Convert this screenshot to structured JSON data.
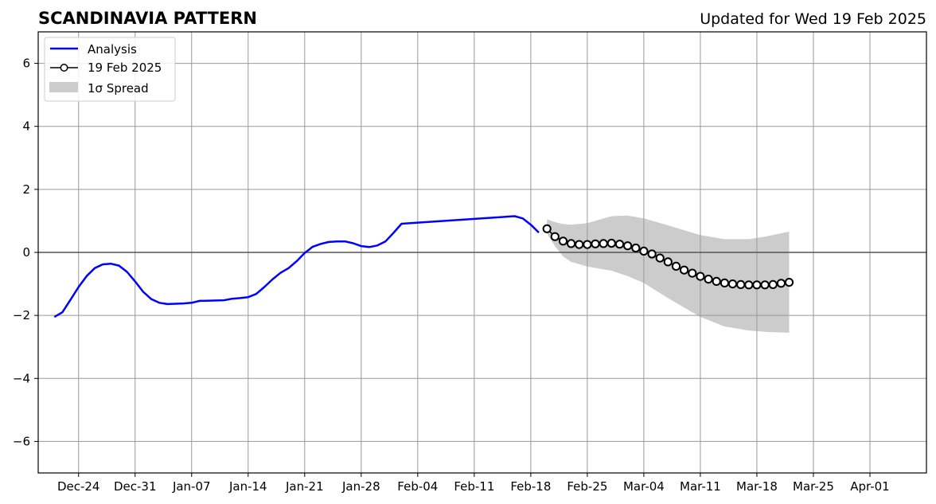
{
  "chart_data": {
    "type": "line",
    "title": "SCANDINAVIA PATTERN",
    "subtitle": "Updated for Wed 19 Feb 2025",
    "xlabel": "",
    "ylabel": "",
    "xlim": [
      "2024-12-19",
      "2025-04-08"
    ],
    "ylim": [
      -7,
      7
    ],
    "grid": true,
    "legend_position": "top-left",
    "x_ticks": [
      "2024-12-24",
      "2024-12-31",
      "2025-01-07",
      "2025-01-14",
      "2025-01-21",
      "2025-01-28",
      "2025-02-04",
      "2025-02-11",
      "2025-02-18",
      "2025-02-25",
      "2025-03-04",
      "2025-03-11",
      "2025-03-18",
      "2025-03-25",
      "2025-04-01"
    ],
    "x_tick_labels": [
      "Dec-24",
      "Dec-31",
      "Jan-07",
      "Jan-14",
      "Jan-21",
      "Jan-28",
      "Feb-04",
      "Feb-11",
      "Feb-18",
      "Feb-25",
      "Mar-04",
      "Mar-11",
      "Mar-18",
      "Mar-25",
      "Apr-01"
    ],
    "y_ticks": [
      -6,
      -4,
      -2,
      0,
      2,
      4,
      6
    ],
    "y_tick_labels": [
      "−6",
      "−4",
      "−2",
      "0",
      "2",
      "4",
      "6"
    ],
    "zero_line": 0,
    "series": [
      {
        "name": "Analysis",
        "style": "line",
        "color": "#0000ff",
        "x": [
          "2024-12-21",
          "2024-12-22",
          "2024-12-23",
          "2024-12-24",
          "2024-12-25",
          "2024-12-26",
          "2024-12-27",
          "2024-12-28",
          "2024-12-29",
          "2024-12-30",
          "2024-12-31",
          "2025-01-01",
          "2025-01-02",
          "2025-01-03",
          "2025-01-04",
          "2025-01-05",
          "2025-01-06",
          "2025-01-07",
          "2025-01-08",
          "2025-01-11",
          "2025-01-12",
          "2025-01-13",
          "2025-01-14",
          "2025-01-15",
          "2025-01-16",
          "2025-01-17",
          "2025-01-18",
          "2025-01-19",
          "2025-01-20",
          "2025-01-21",
          "2025-01-22",
          "2025-01-23",
          "2025-01-24",
          "2025-01-25",
          "2025-01-26",
          "2025-01-27",
          "2025-01-28",
          "2025-01-29",
          "2025-01-30",
          "2025-01-31",
          "2025-02-01",
          "2025-02-02",
          "2025-02-16",
          "2025-02-17",
          "2025-02-18",
          "2025-02-19"
        ],
        "values": [
          -2.05,
          -1.9,
          -1.5,
          -1.1,
          -0.75,
          -0.5,
          -0.38,
          -0.36,
          -0.42,
          -0.62,
          -0.92,
          -1.25,
          -1.48,
          -1.6,
          -1.64,
          -1.63,
          -1.62,
          -1.6,
          -1.54,
          -1.52,
          -1.47,
          -1.45,
          -1.42,
          -1.32,
          -1.1,
          -0.86,
          -0.65,
          -0.5,
          -0.28,
          -0.02,
          0.18,
          0.27,
          0.33,
          0.35,
          0.35,
          0.29,
          0.2,
          0.17,
          0.22,
          0.35,
          0.62,
          0.91,
          1.15,
          1.08,
          0.88,
          0.63
        ]
      },
      {
        "name": "19 Feb 2025",
        "style": "line-markers",
        "color": "#000000",
        "marker_fill": "#ffffff",
        "x": [
          "2025-02-20",
          "2025-02-21",
          "2025-02-22",
          "2025-02-23",
          "2025-02-24",
          "2025-02-25",
          "2025-02-26",
          "2025-02-27",
          "2025-02-28",
          "2025-03-01",
          "2025-03-02",
          "2025-03-03",
          "2025-03-04",
          "2025-03-05",
          "2025-03-06",
          "2025-03-07",
          "2025-03-08",
          "2025-03-09",
          "2025-03-10",
          "2025-03-11",
          "2025-03-12",
          "2025-03-13",
          "2025-03-14",
          "2025-03-15",
          "2025-03-16",
          "2025-03-17",
          "2025-03-18",
          "2025-03-19",
          "2025-03-20",
          "2025-03-21",
          "2025-03-22"
        ],
        "values": [
          0.75,
          0.5,
          0.36,
          0.28,
          0.25,
          0.25,
          0.27,
          0.28,
          0.29,
          0.26,
          0.21,
          0.14,
          0.04,
          -0.05,
          -0.18,
          -0.3,
          -0.44,
          -0.56,
          -0.66,
          -0.76,
          -0.85,
          -0.92,
          -0.97,
          -1.0,
          -1.02,
          -1.03,
          -1.03,
          -1.03,
          -1.02,
          -0.98,
          -0.95
        ]
      }
    ],
    "band": {
      "name": "1σ Spread",
      "color": "#cccccc",
      "x": [
        "2025-02-20",
        "2025-02-21",
        "2025-02-22",
        "2025-02-23",
        "2025-02-25",
        "2025-02-28",
        "2025-03-02",
        "2025-03-04",
        "2025-03-07",
        "2025-03-11",
        "2025-03-14",
        "2025-03-17",
        "2025-03-19",
        "2025-03-22"
      ],
      "upper": [
        1.05,
        0.96,
        0.9,
        0.88,
        0.93,
        1.15,
        1.17,
        1.08,
        0.86,
        0.55,
        0.42,
        0.42,
        0.5,
        0.66
      ],
      "lower": [
        0.6,
        0.2,
        -0.13,
        -0.3,
        -0.45,
        -0.58,
        -0.75,
        -0.97,
        -1.45,
        -2.05,
        -2.35,
        -2.48,
        -2.52,
        -2.55
      ]
    }
  }
}
